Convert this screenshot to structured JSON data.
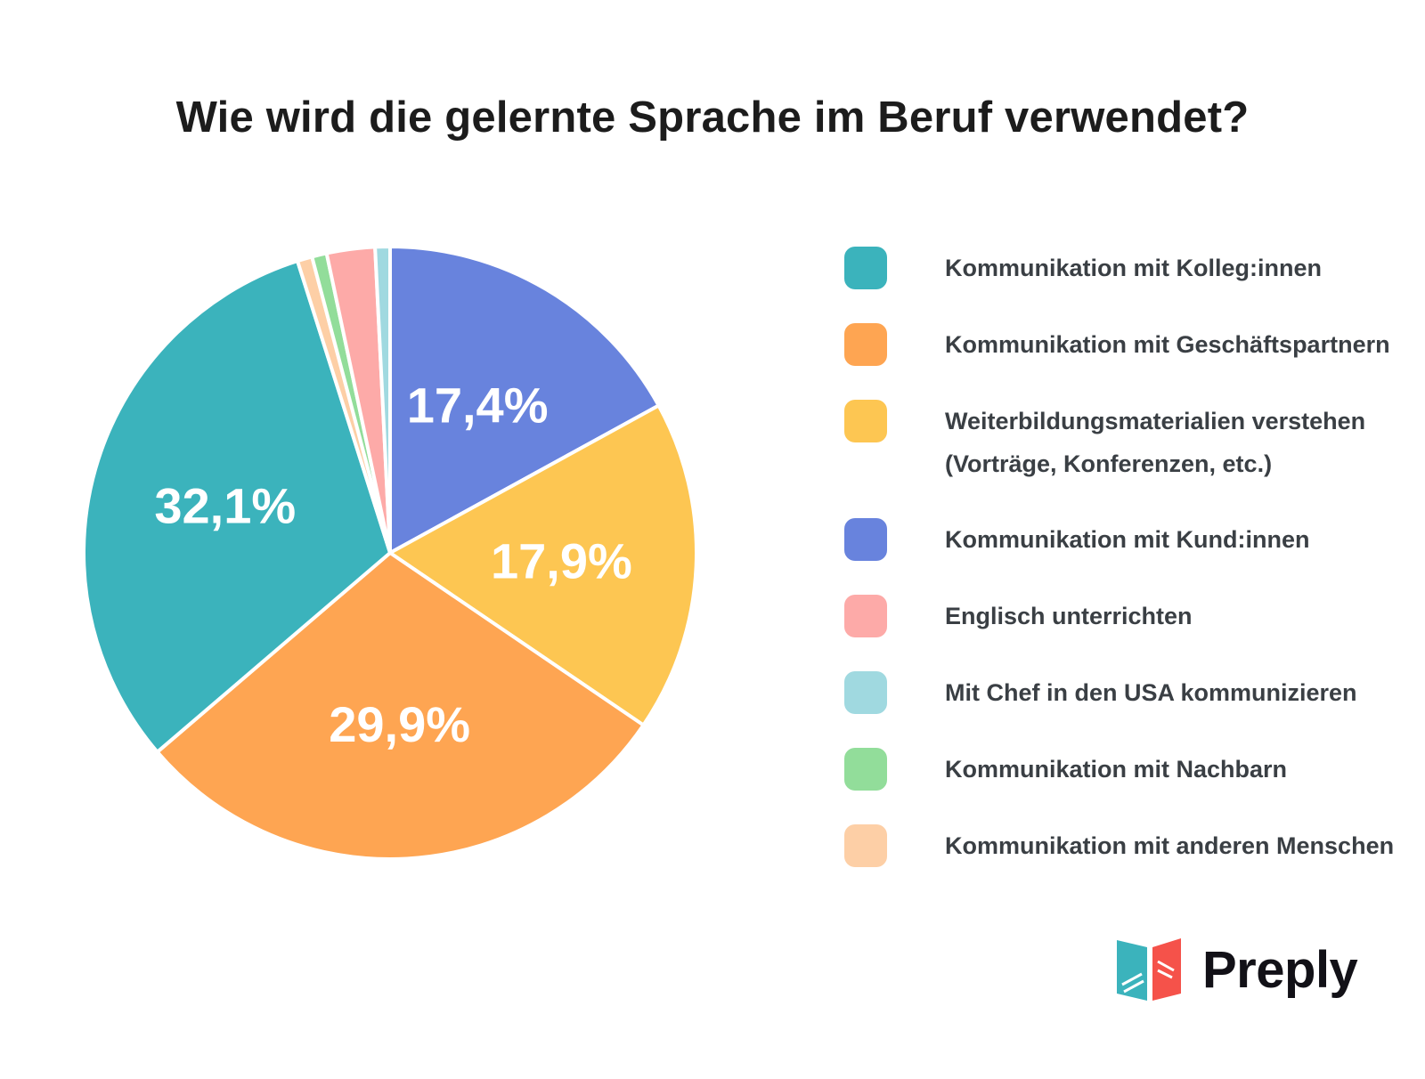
{
  "header": {
    "title": "Wie wird die gelernte Sprache im Beruf verwendet?"
  },
  "chart_data": {
    "type": "pie",
    "title": "Wie wird die gelernte Sprache im Beruf verwendet?",
    "legend_position": "right",
    "slices": [
      {
        "label": "Kommunikation mit Kund:innen",
        "value": 17.4,
        "display": "17,4%",
        "color": "#6883dd"
      },
      {
        "label": "Weiterbildungsmaterialien verstehen (Vorträge, Konferenzen, etc.)",
        "value": 17.9,
        "display": "17,9%",
        "color": "#fdc652"
      },
      {
        "label": "Kommunikation mit Geschäftspartnern",
        "value": 29.9,
        "display": "29,9%",
        "color": "#fea552"
      },
      {
        "label": "Kommunikation mit Kolleg:innen",
        "value": 32.1,
        "display": "32,1%",
        "color": "#3bb3bc"
      },
      {
        "label": "Kommunikation mit anderen Menschen",
        "value": 0.8,
        "display": "",
        "color": "#fdcfa6"
      },
      {
        "label": "Kommunikation mit Nachbarn",
        "value": 0.8,
        "display": "",
        "color": "#92dd9a"
      },
      {
        "label": "Englisch unterrichten",
        "value": 2.6,
        "display": "",
        "color": "#fdaaa8"
      },
      {
        "label": "Mit Chef in den USA kommunizieren",
        "value": 0.8,
        "display": "",
        "color": "#a0d9e0"
      }
    ]
  },
  "legend": {
    "items": [
      {
        "label": "Kommunikation mit Kolleg:innen",
        "color": "#3bb3bc"
      },
      {
        "label": "Kommunikation mit Geschäftspartnern",
        "color": "#fea552"
      },
      {
        "label": "Weiterbildungsmaterialien verstehen\n(Vorträge, Konferenzen, etc.)",
        "color": "#fdc652"
      },
      {
        "label": "Kommunikation mit Kund:innen",
        "color": "#6883dd"
      },
      {
        "label": "Englisch unterrichten",
        "color": "#fdaaa8"
      },
      {
        "label": "Mit Chef in den USA kommunizieren",
        "color": "#a0d9e0"
      },
      {
        "label": "Kommunikation mit Nachbarn",
        "color": "#92dd9a"
      },
      {
        "label": "Kommunikation mit anderen Menschen",
        "color": "#fdcfa6"
      }
    ]
  },
  "logo": {
    "name": "Preply",
    "colors": {
      "teal": "#3bb3bc",
      "red": "#f5524a"
    }
  }
}
